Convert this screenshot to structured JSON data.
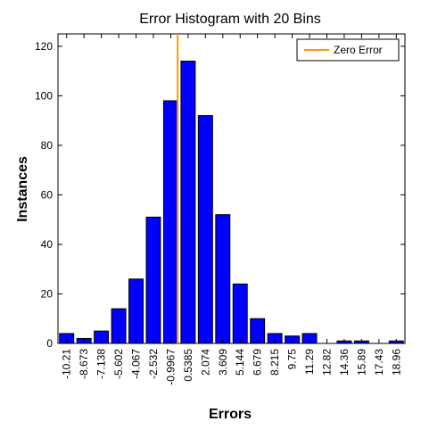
{
  "chart_data": {
    "type": "bar",
    "title": "Error Histogram with 20 Bins",
    "xlabel": "Errors",
    "ylabel": "Instances",
    "categories": [
      "-10.21",
      "-8.673",
      "-7.138",
      "-5.602",
      "-4.067",
      "-2.532",
      "-0.9967",
      "0.5385",
      "2.074",
      "3.609",
      "5.144",
      "6.679",
      "8.215",
      "9.75",
      "11.29",
      "12.82",
      "14.36",
      "15.89",
      "17.43",
      "18.96"
    ],
    "series": [
      {
        "values": [
          4,
          2,
          5,
          14,
          26,
          51,
          98,
          114,
          92,
          52,
          24,
          10,
          4,
          3,
          4,
          0,
          1,
          1,
          0,
          1
        ]
      }
    ],
    "ylim": [
      0,
      125
    ],
    "yticks": [
      0,
      20,
      40,
      60,
      80,
      100,
      120
    ],
    "reference_line": {
      "label": "Zero Error",
      "x_between_categories": [
        6,
        7
      ],
      "color": "#ff9900"
    },
    "bar_color": "#0000ff",
    "legend": {
      "entries": [
        "Zero Error"
      ],
      "position": "top-right"
    },
    "grid": false
  }
}
